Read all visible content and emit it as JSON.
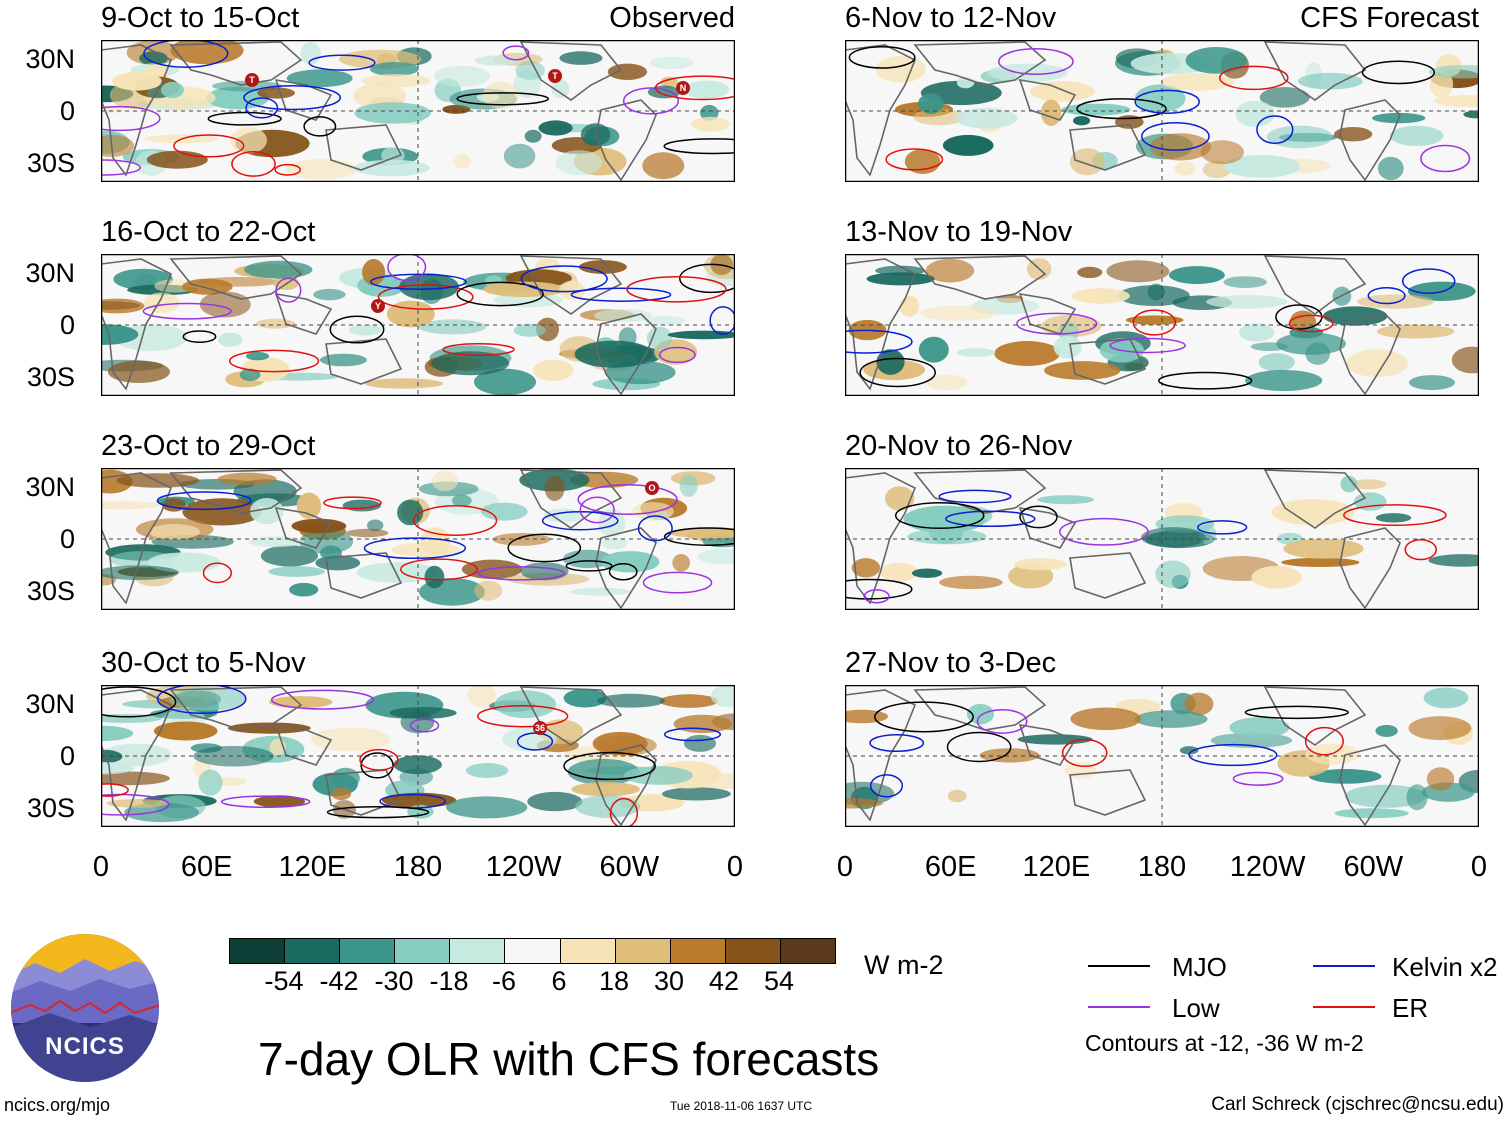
{
  "panels": [
    {
      "id": "p1",
      "title": "9-Oct to 15-Oct",
      "label": "Observed"
    },
    {
      "id": "p2",
      "title": "16-Oct to 22-Oct",
      "label": ""
    },
    {
      "id": "p3",
      "title": "23-Oct to 29-Oct",
      "label": ""
    },
    {
      "id": "p4",
      "title": "30-Oct to 5-Nov",
      "label": ""
    },
    {
      "id": "p5",
      "title": "6-Nov to 12-Nov",
      "label": "CFS Forecast"
    },
    {
      "id": "p6",
      "title": "13-Nov to 19-Nov",
      "label": ""
    },
    {
      "id": "p7",
      "title": "20-Nov to 26-Nov",
      "label": ""
    },
    {
      "id": "p8",
      "title": "27-Nov to 3-Dec",
      "label": ""
    }
  ],
  "lat_labels": [
    "30N",
    "0",
    "30S"
  ],
  "lon_labels": [
    "0",
    "60E",
    "120E",
    "180",
    "120W",
    "60W",
    "0"
  ],
  "colorbar": {
    "ticks": [
      "-54",
      "-42",
      "-30",
      "-18",
      "-6",
      "6",
      "18",
      "30",
      "42",
      "54"
    ],
    "colors": [
      "#0d3f36",
      "#1a6a60",
      "#3b958a",
      "#86cdc0",
      "#c6e9e0",
      "#f7f7f7",
      "#f6e3b6",
      "#dfbd7a",
      "#b97a2c",
      "#86531a",
      "#5a3a1a"
    ],
    "unit": "W m-2"
  },
  "title": "7-day OLR with CFS forecasts",
  "legend": [
    {
      "label": "MJO",
      "color": "#000000"
    },
    {
      "label": "Kelvin x2",
      "color": "#0a1fcf"
    },
    {
      "label": "Low",
      "color": "#9a33e0"
    },
    {
      "label": "ER",
      "color": "#e01010"
    }
  ],
  "contour_note": "Contours at -12, -36 W m-2",
  "storm_markers": [
    "T",
    "T",
    "N",
    "Y",
    "O",
    "36"
  ],
  "logo_text": "NCICS",
  "website": "ncics.org/mjo",
  "timestamp": "Tue 2018-11-06 1637 UTC",
  "credit": "Carl Schreck (cjschrec@ncsu.edu)"
}
